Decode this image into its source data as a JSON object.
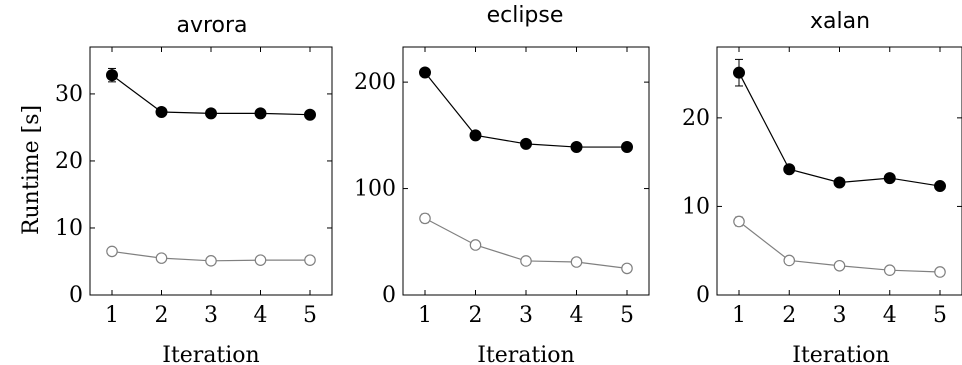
{
  "chart_data": [
    {
      "type": "line",
      "title": "avrora",
      "xlabel": "Iteration",
      "ylabel": "Runtime [s]",
      "x": [
        1,
        2,
        3,
        4,
        5
      ],
      "ylim": [
        0,
        37
      ],
      "yticks": [
        0,
        10,
        20,
        30
      ],
      "grid": false,
      "series": [
        {
          "marker": "filled-circle",
          "color": "#000000",
          "values": [
            32.8,
            27.3,
            27.1,
            27.1,
            26.9
          ],
          "errors": [
            1.0,
            0.5,
            0.4,
            0.4,
            0.4
          ]
        },
        {
          "marker": "open-circle",
          "color": "#808080",
          "values": [
            6.5,
            5.5,
            5.1,
            5.2,
            5.2
          ],
          "errors": [
            0.3,
            0.2,
            0.2,
            0.2,
            0.2
          ]
        }
      ]
    },
    {
      "type": "line",
      "title": "eclipse",
      "xlabel": "Iteration",
      "ylabel": "",
      "x": [
        1,
        2,
        3,
        4,
        5
      ],
      "ylim": [
        0,
        233
      ],
      "yticks": [
        0,
        100,
        200
      ],
      "grid": false,
      "series": [
        {
          "marker": "filled-circle",
          "color": "#000000",
          "values": [
            209,
            150,
            142,
            139,
            139
          ],
          "errors": [
            2,
            2,
            2,
            2,
            2
          ]
        },
        {
          "marker": "open-circle",
          "color": "#808080",
          "values": [
            72,
            47,
            32,
            31,
            25
          ],
          "errors": [
            4,
            3,
            2,
            2,
            2
          ]
        }
      ]
    },
    {
      "type": "line",
      "title": "xalan",
      "xlabel": "Iteration",
      "ylabel": "",
      "x": [
        1,
        2,
        3,
        4,
        5
      ],
      "ylim": [
        0,
        28
      ],
      "yticks": [
        0,
        10,
        20
      ],
      "grid": false,
      "series": [
        {
          "marker": "filled-circle",
          "color": "#000000",
          "values": [
            25.1,
            14.2,
            12.7,
            13.2,
            12.3
          ],
          "errors": [
            1.5,
            0.4,
            0.4,
            0.4,
            0.3
          ]
        },
        {
          "marker": "open-circle",
          "color": "#808080",
          "values": [
            8.3,
            3.9,
            3.3,
            2.8,
            2.6
          ],
          "errors": [
            0.5,
            0.3,
            0.2,
            0.2,
            0.2
          ]
        }
      ]
    }
  ]
}
